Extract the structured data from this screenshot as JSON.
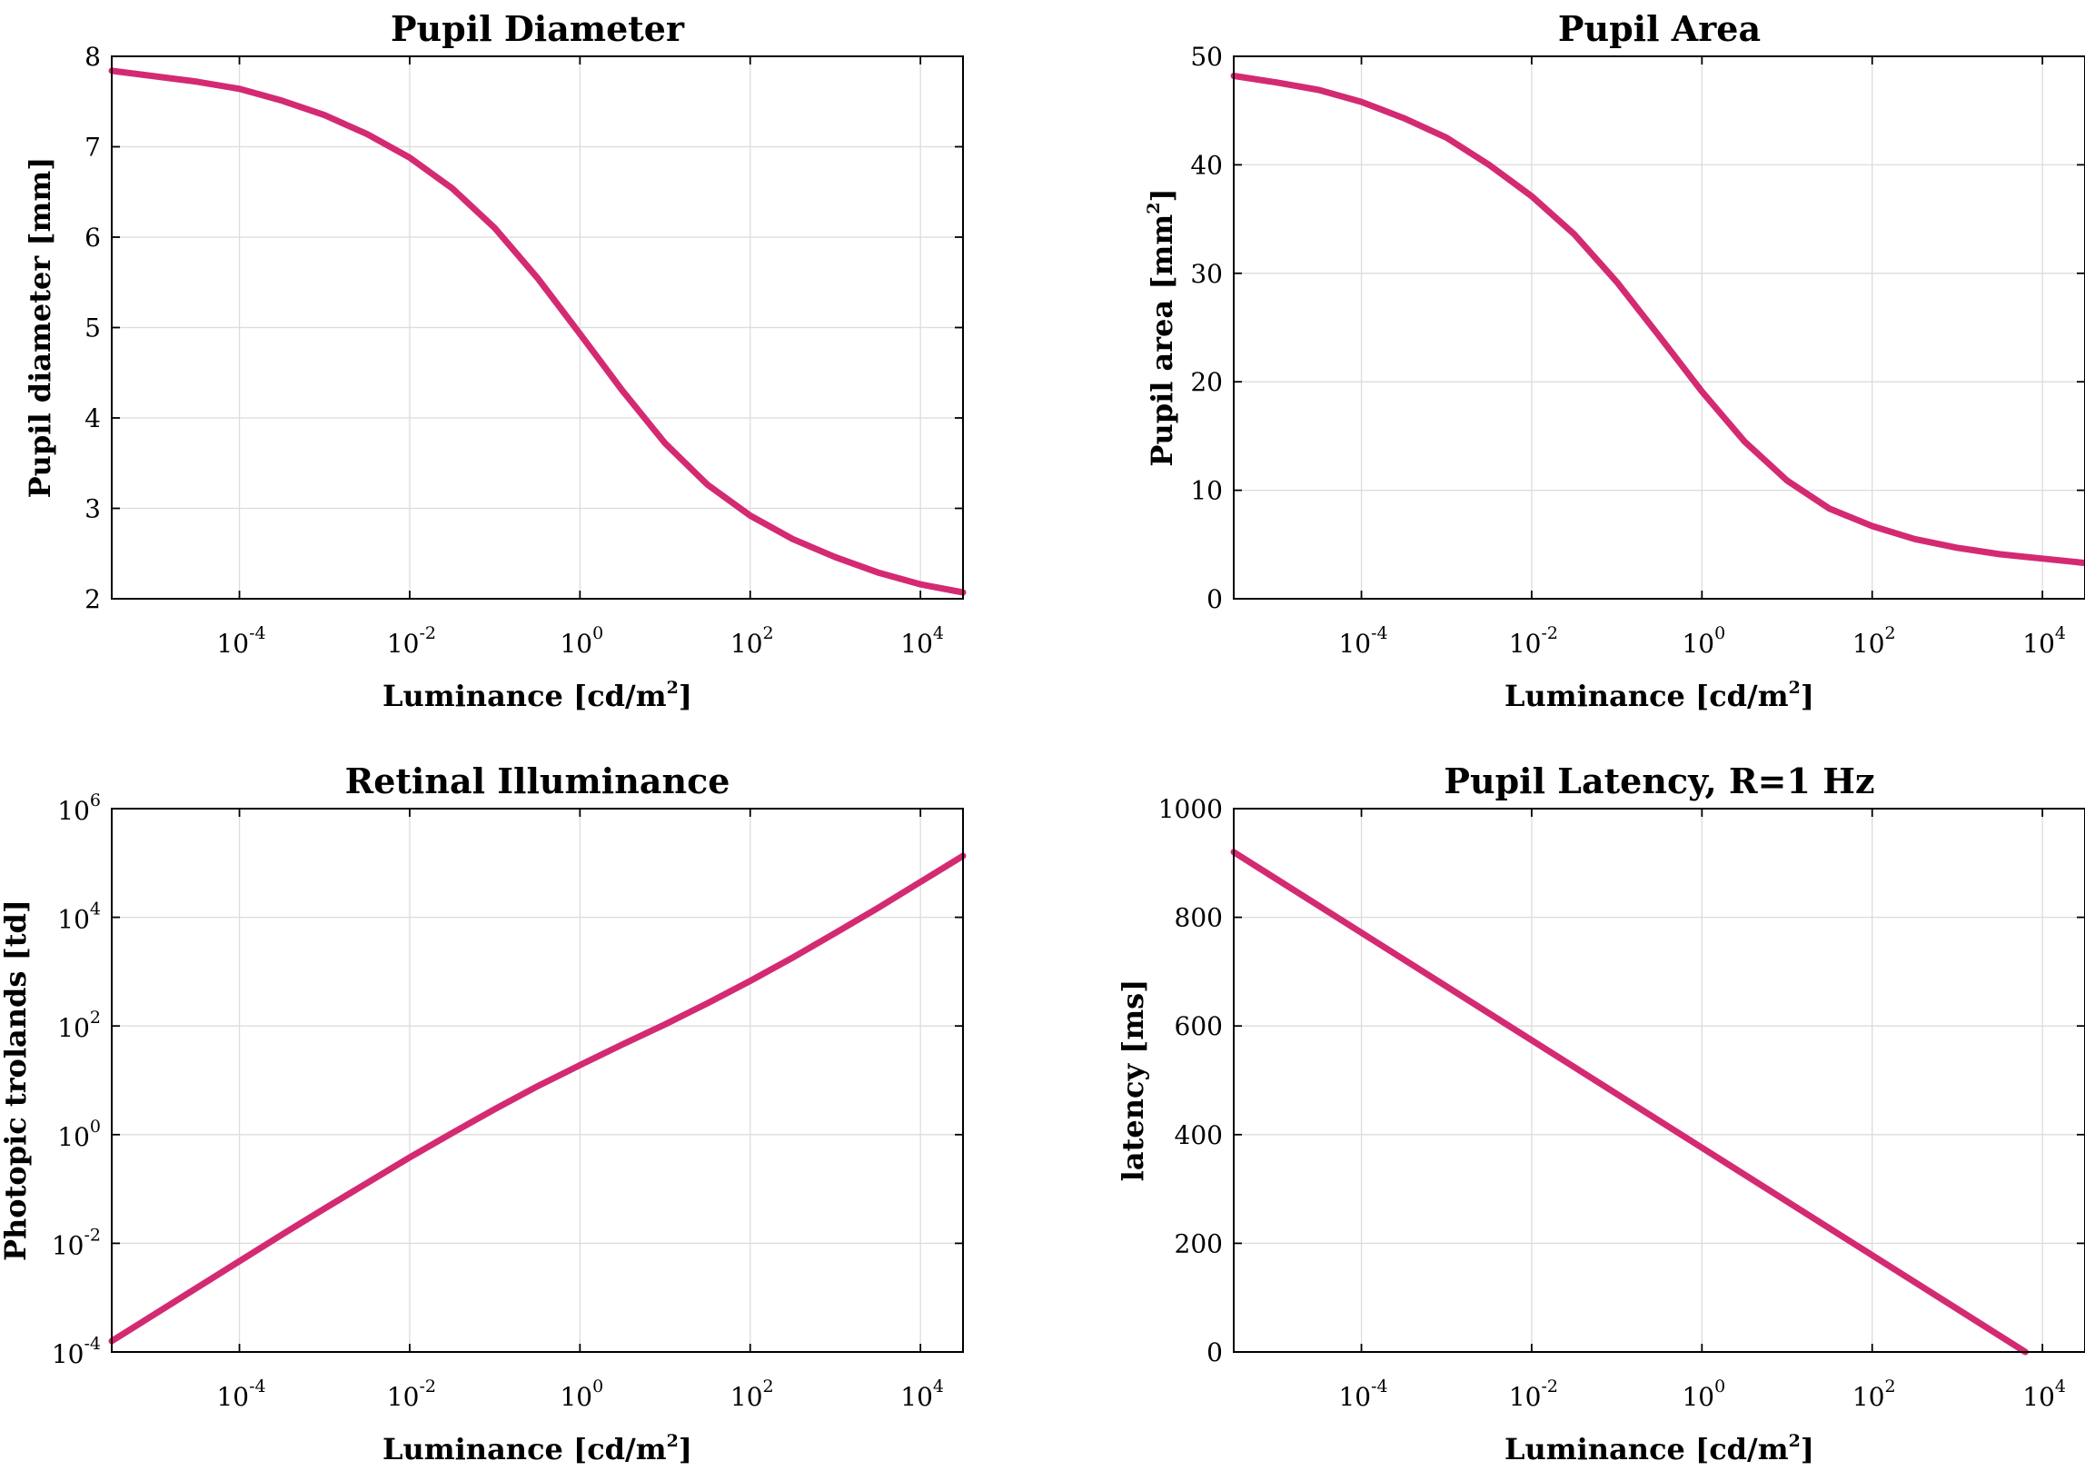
{
  "colors": {
    "curve": "#d42a72"
  },
  "chart_data": [
    {
      "type": "line",
      "title": "Pupil Diameter",
      "xlabel": {
        "text": "Luminance [cd/m",
        "sup": "2",
        "after": "]"
      },
      "ylabel": {
        "text": "Pupil diameter [mm]",
        "sup": "",
        "after": ""
      },
      "xscale": "log",
      "xlim_log10": [
        -5.5,
        4.5
      ],
      "x_ticks_log10": [
        -4,
        -2,
        0,
        2,
        4
      ],
      "x_tick_base": "10",
      "x_tick_exponents": [
        "-4",
        "-2",
        "0",
        "2",
        "4"
      ],
      "yscale": "linear",
      "ylim": [
        2,
        8
      ],
      "y_ticks": [
        2,
        3,
        4,
        5,
        6,
        7,
        8
      ],
      "y_tick_labels": [
        "2",
        "3",
        "4",
        "5",
        "6",
        "7",
        "8"
      ],
      "grid": true,
      "series": [
        {
          "x_log10": [
            -5.5,
            -5,
            -4.5,
            -4,
            -3.5,
            -3,
            -2.5,
            -2,
            -1.5,
            -1,
            -0.5,
            0,
            0.5,
            1,
            1.5,
            2,
            2.5,
            3,
            3.5,
            4,
            4.5
          ],
          "y": [
            7.84,
            7.78,
            7.72,
            7.64,
            7.51,
            7.35,
            7.14,
            6.88,
            6.54,
            6.1,
            5.55,
            4.93,
            4.3,
            3.72,
            3.26,
            2.92,
            2.66,
            2.46,
            2.29,
            2.16,
            2.07
          ]
        }
      ]
    },
    {
      "type": "line",
      "title": "Pupil Area",
      "xlabel": {
        "text": "Luminance [cd/m",
        "sup": "2",
        "after": "]"
      },
      "ylabel": {
        "text": "Pupil area [mm",
        "sup": "2",
        "after": "]"
      },
      "xscale": "log",
      "xlim_log10": [
        -5.5,
        4.5
      ],
      "x_ticks_log10": [
        -4,
        -2,
        0,
        2,
        4
      ],
      "x_tick_base": "10",
      "x_tick_exponents": [
        "-4",
        "-2",
        "0",
        "2",
        "4"
      ],
      "yscale": "linear",
      "ylim": [
        0,
        50
      ],
      "y_ticks": [
        0,
        10,
        20,
        30,
        40,
        50
      ],
      "y_tick_labels": [
        "0",
        "10",
        "20",
        "30",
        "40",
        "50"
      ],
      "grid": true,
      "series": [
        {
          "x_log10": [
            -5.5,
            -5,
            -4.5,
            -4,
            -3.5,
            -3,
            -2.5,
            -2,
            -1.5,
            -1,
            -0.5,
            0,
            0.5,
            1,
            1.5,
            2,
            2.5,
            3,
            3.5,
            4,
            4.5
          ],
          "y": [
            48.2,
            47.6,
            46.9,
            45.8,
            44.3,
            42.5,
            40.0,
            37.1,
            33.6,
            29.2,
            24.2,
            19.1,
            14.5,
            10.9,
            8.3,
            6.7,
            5.5,
            4.7,
            4.1,
            3.7,
            3.3
          ]
        }
      ]
    },
    {
      "type": "line",
      "title": "Retinal Illuminance",
      "xlabel": {
        "text": "Luminance [cd/m",
        "sup": "2",
        "after": "]"
      },
      "ylabel": {
        "text": "Photopic trolands [td]",
        "sup": "",
        "after": ""
      },
      "xscale": "log",
      "xlim_log10": [
        -5.5,
        4.5
      ],
      "x_ticks_log10": [
        -4,
        -2,
        0,
        2,
        4
      ],
      "x_tick_base": "10",
      "x_tick_exponents": [
        "-4",
        "-2",
        "0",
        "2",
        "4"
      ],
      "yscale": "log",
      "ylim_log10": [
        -4,
        6
      ],
      "y_ticks_log10": [
        -4,
        -2,
        0,
        2,
        4,
        6
      ],
      "y_tick_base": "10",
      "y_tick_exponents": [
        "-4",
        "-2",
        "0",
        "2",
        "4",
        "6"
      ],
      "grid": true,
      "series": [
        {
          "x_log10": [
            -5.5,
            -5,
            -4.5,
            -4,
            -3.5,
            -3,
            -2.5,
            -2,
            -1.5,
            -1,
            -0.5,
            0,
            0.5,
            1,
            1.5,
            2,
            2.5,
            3,
            3.5,
            4,
            4.5
          ],
          "y_log10": [
            -3.8,
            -3.31,
            -2.82,
            -2.33,
            -1.84,
            -1.36,
            -0.89,
            -0.42,
            0.03,
            0.47,
            0.89,
            1.28,
            1.66,
            2.03,
            2.42,
            2.83,
            3.26,
            3.71,
            4.17,
            4.65,
            5.13
          ]
        }
      ]
    },
    {
      "type": "line",
      "title": "Pupil Latency, R=1 Hz",
      "xlabel": {
        "text": "Luminance [cd/m",
        "sup": "2",
        "after": "]"
      },
      "ylabel": {
        "text": "latency [ms]",
        "sup": "",
        "after": ""
      },
      "xscale": "log",
      "xlim_log10": [
        -5.5,
        4.5
      ],
      "x_ticks_log10": [
        -4,
        -2,
        0,
        2,
        4
      ],
      "x_tick_base": "10",
      "x_tick_exponents": [
        "-4",
        "-2",
        "0",
        "2",
        "4"
      ],
      "yscale": "linear",
      "ylim": [
        0,
        1000
      ],
      "y_ticks": [
        0,
        200,
        400,
        600,
        800,
        1000
      ],
      "y_tick_labels": [
        "0",
        "200",
        "400",
        "600",
        "800",
        "1000"
      ],
      "grid": true,
      "series": [
        {
          "x_log10": [
            -5.5,
            3.8
          ],
          "y": [
            920,
            0
          ]
        }
      ]
    }
  ]
}
